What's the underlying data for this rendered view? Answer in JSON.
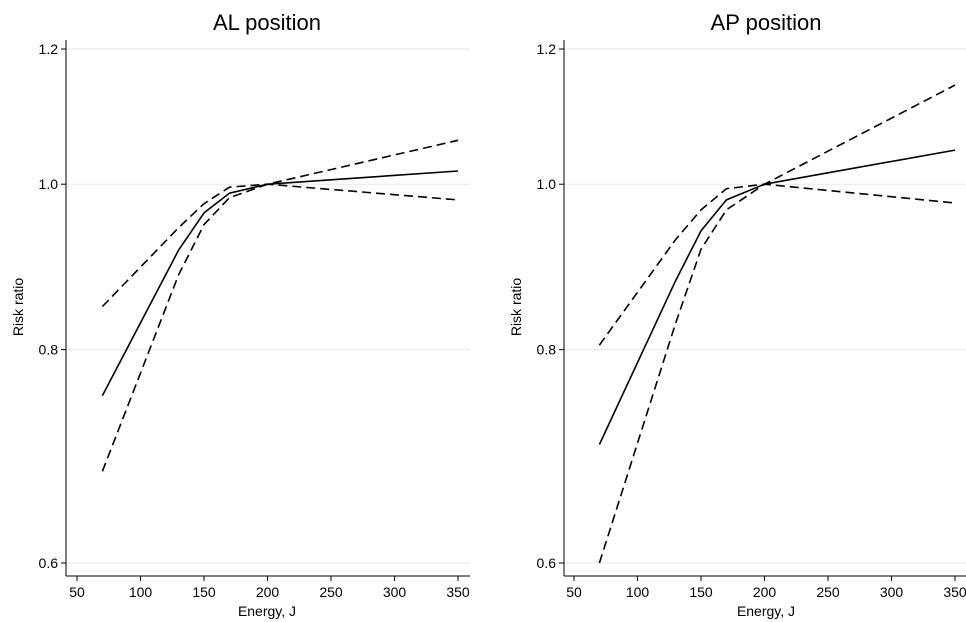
{
  "chart_data": [
    {
      "type": "line",
      "title": "AL position",
      "xlabel": "Energy, J",
      "ylabel": "Risk ratio",
      "xlim": [
        50,
        350
      ],
      "ylim": [
        0.6,
        1.2
      ],
      "y_scale": "log",
      "x_ticks": [
        50,
        100,
        150,
        200,
        250,
        300,
        350
      ],
      "y_ticks": [
        0.6,
        0.8,
        1.0,
        1.2
      ],
      "x_tick_labels": [
        "50",
        "100",
        "150",
        "200",
        "250",
        "300",
        "350"
      ],
      "y_tick_labels": [
        "0.6",
        "0.8",
        "1.0",
        "1.2"
      ],
      "grid": "horizontal",
      "x": [
        70,
        130,
        150,
        170,
        200,
        350
      ],
      "series": [
        {
          "style": "solid",
          "values": [
            0.752,
            0.915,
            0.962,
            0.988,
            1.0,
            1.018
          ]
        },
        {
          "style": "dashed",
          "values": [
            0.848,
            0.943,
            0.974,
            0.996,
            1.0,
            0.979
          ]
        },
        {
          "style": "dashed",
          "values": [
            0.679,
            0.885,
            0.947,
            0.982,
            1.0,
            1.061
          ]
        }
      ]
    },
    {
      "type": "line",
      "title": "AP position",
      "xlabel": "Energy, J",
      "ylabel": "Risk ratio",
      "xlim": [
        50,
        350
      ],
      "ylim": [
        0.6,
        1.2
      ],
      "y_scale": "log",
      "x_ticks": [
        50,
        100,
        150,
        200,
        250,
        300,
        350
      ],
      "y_ticks": [
        0.6,
        0.8,
        1.0,
        1.2
      ],
      "x_tick_labels": [
        "50",
        "100",
        "150",
        "200",
        "250",
        "300",
        "350"
      ],
      "y_tick_labels": [
        "0.6",
        "0.8",
        "1.0",
        "1.2"
      ],
      "grid": "horizontal",
      "x": [
        70,
        130,
        150,
        170,
        200,
        350
      ],
      "series": [
        {
          "style": "solid",
          "values": [
            0.704,
            0.878,
            0.939,
            0.979,
            1.0,
            1.047
          ]
        },
        {
          "style": "dashed",
          "values": [
            0.805,
            0.928,
            0.966,
            0.994,
            1.0,
            0.975
          ]
        },
        {
          "style": "dashed",
          "values": [
            0.6,
            0.829,
            0.916,
            0.966,
            1.0,
            1.143
          ]
        }
      ]
    }
  ]
}
